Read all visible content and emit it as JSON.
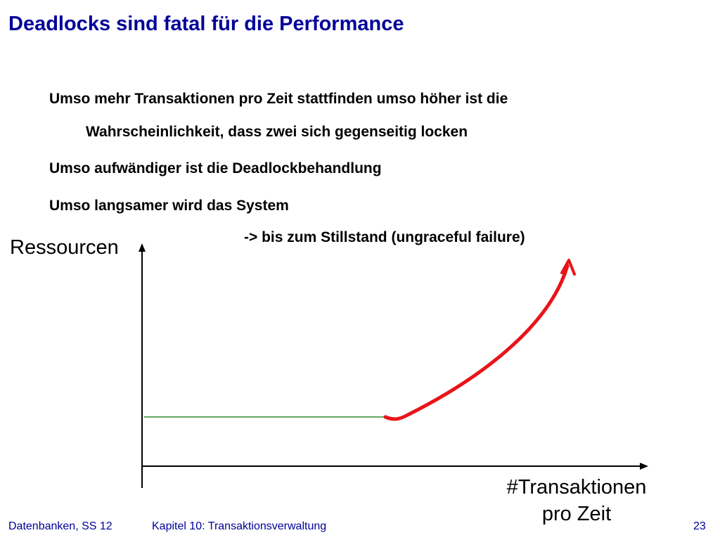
{
  "slide": {
    "title": "Deadlocks sind fatal für die Performance",
    "bullets": [
      "Umso mehr Transaktionen pro Zeit stattfinden umso höher ist die",
      "Wahrscheinlichkeit, dass zwei sich gegenseitig locken",
      "Umso aufwändiger ist die Deadlockbehandlung",
      "Umso langsamer wird das System",
      "-> bis zum Stillstand (ungraceful failure)"
    ]
  },
  "diagram": {
    "y_axis_label": "Ressourcen",
    "x_axis_label_line1": "#Transaktionen",
    "x_axis_label_line2": "pro Zeit",
    "colors": {
      "flat_line": "#2e8b2e",
      "curve": "#e8141a",
      "axes": "#000000"
    }
  },
  "footer": {
    "course": "Datenbanken, SS 12",
    "chapter": "Kapitel 10: Transaktionsverwaltung",
    "page_number": "23"
  }
}
